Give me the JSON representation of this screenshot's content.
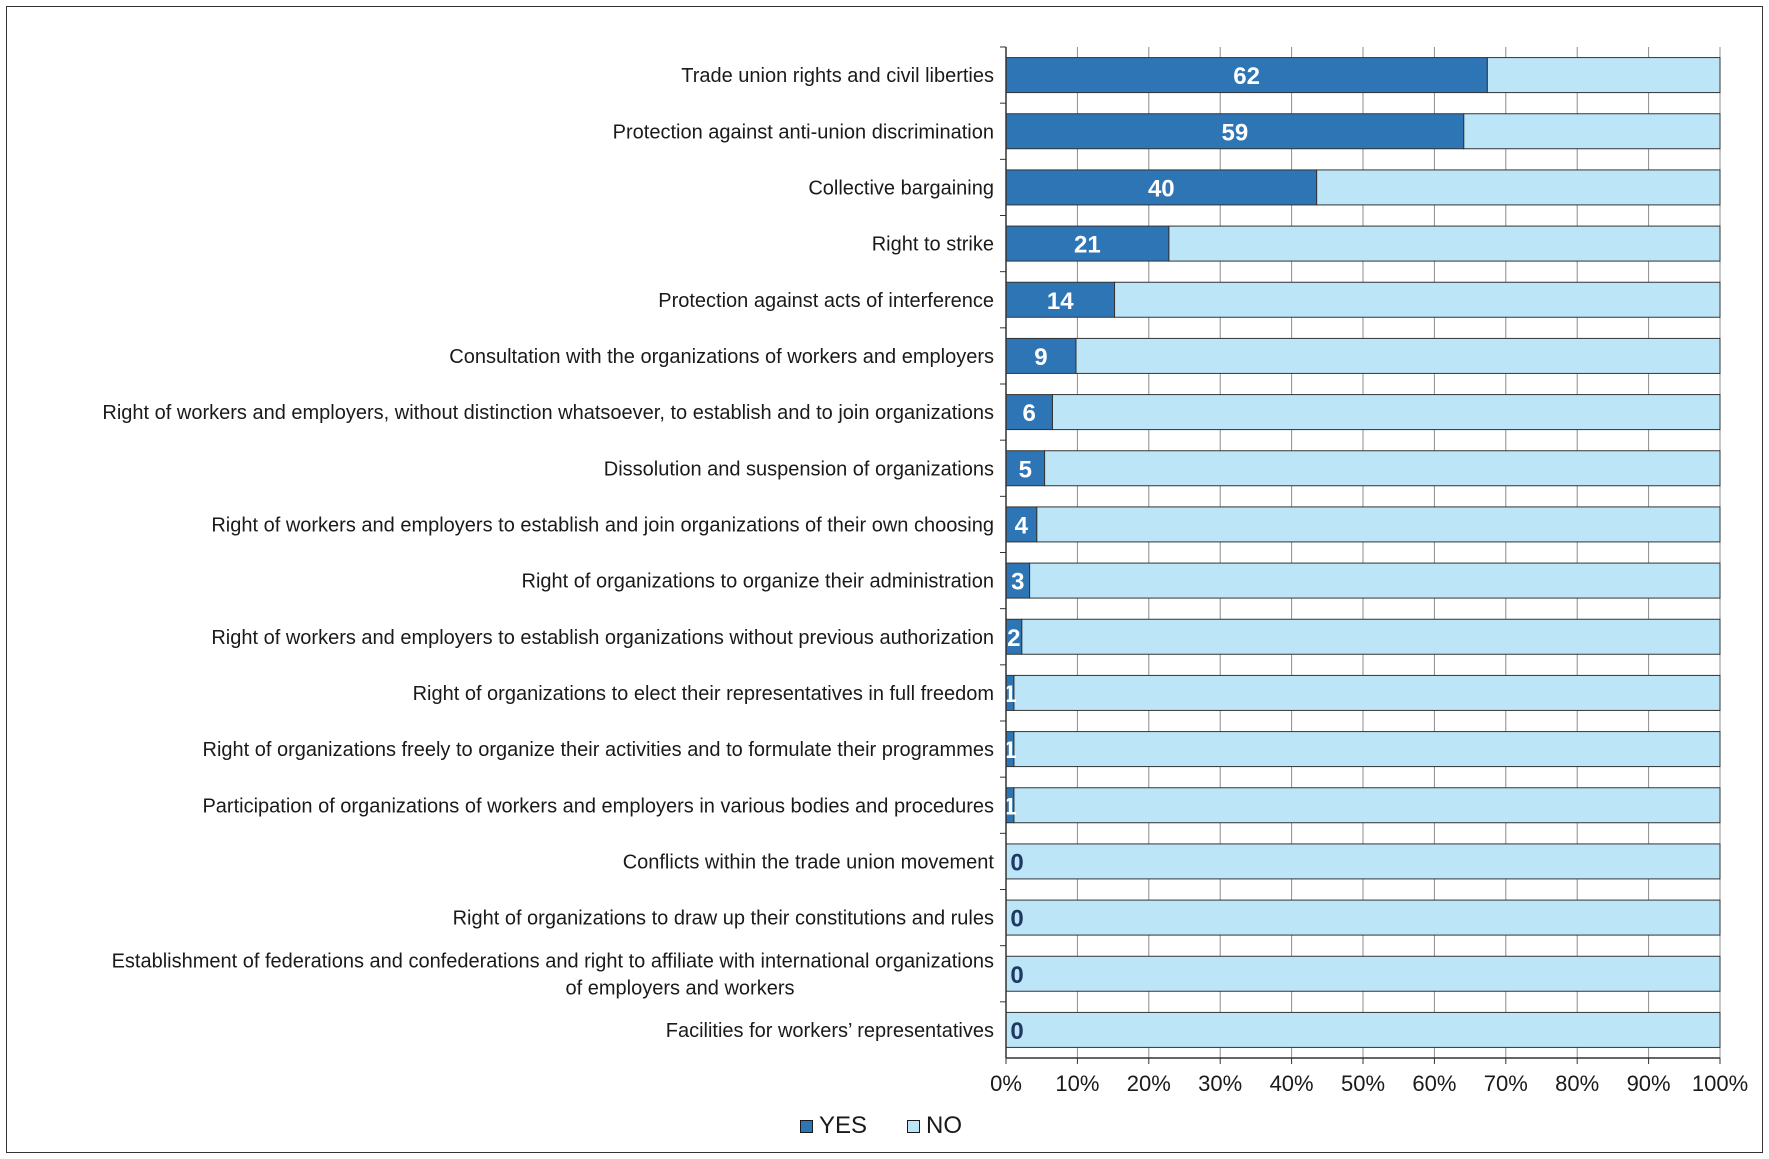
{
  "chart_data": {
    "type": "bar",
    "orientation": "horizontal",
    "stacked": "percent",
    "title": "",
    "xlabel": "",
    "ylabel": "",
    "xlim": [
      0,
      100
    ],
    "x_ticks": [
      "0%",
      "10%",
      "20%",
      "30%",
      "40%",
      "50%",
      "60%",
      "70%",
      "80%",
      "90%",
      "100%"
    ],
    "grid": "vertical gridlines",
    "legend_position": "bottom-center",
    "categories": [
      [
        "Trade union rights and civil liberties"
      ],
      [
        "Protection against anti-union discrimination"
      ],
      [
        "Collective bargaining"
      ],
      [
        "Right to strike"
      ],
      [
        "Protection against acts of interference"
      ],
      [
        "Consultation with the organizations of workers and employers"
      ],
      [
        "Right of workers and employers, without distinction whatsoever, to establish and to join organizations"
      ],
      [
        "Dissolution and suspension of organizations"
      ],
      [
        "Right of workers and employers to establish and join organizations of their own choosing"
      ],
      [
        "Right of organizations to organize their administration"
      ],
      [
        "Right of workers and employers to establish organizations without previous authorization"
      ],
      [
        "Right of organizations to elect their representatives in full freedom"
      ],
      [
        "Right of organizations freely to organize their activities and to formulate their programmes"
      ],
      [
        "Participation of organizations of workers and employers in various bodies and procedures"
      ],
      [
        "Conflicts within the trade union movement"
      ],
      [
        "Right of organizations to draw up their constitutions and rules"
      ],
      [
        "Establishment of federations and confederations and right to affiliate with international organizations",
        "of employers and workers"
      ],
      [
        "Facilities for workers’ representatives"
      ]
    ],
    "series": [
      {
        "name": "YES",
        "color": "#2e75b6",
        "label_color_inside": "#ffffff",
        "label_color_zero": "#1f3864",
        "values": [
          62,
          59,
          40,
          21,
          14,
          9,
          6,
          5,
          4,
          3,
          2,
          1,
          1,
          1,
          0,
          0,
          0,
          0
        ],
        "percent": [
          67.4,
          64.1,
          43.5,
          22.8,
          15.2,
          9.8,
          6.5,
          5.4,
          4.3,
          3.3,
          2.2,
          1.1,
          1.1,
          1.1,
          0,
          0,
          0,
          0
        ]
      },
      {
        "name": "NO",
        "color": "#bde5f8",
        "values": [
          30,
          33,
          52,
          71,
          78,
          83,
          86,
          87,
          88,
          89,
          90,
          91,
          91,
          91,
          92,
          92,
          92,
          92
        ]
      }
    ]
  }
}
